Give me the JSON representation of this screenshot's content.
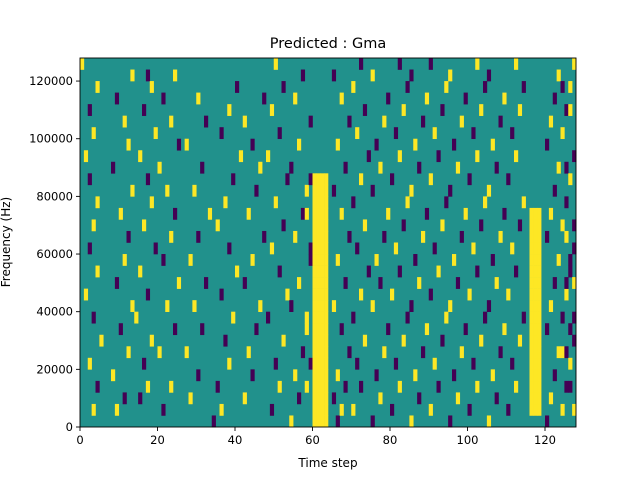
{
  "chart_data": {
    "type": "heatmap",
    "title": "Predicted : Gma",
    "xlabel": "Time step",
    "ylabel": "Frequency (Hz)",
    "xlim": [
      0,
      128
    ],
    "ylim": [
      0,
      128000
    ],
    "x_ticks": [
      0,
      20,
      40,
      60,
      80,
      100,
      120
    ],
    "y_ticks": [
      0,
      20000,
      40000,
      60000,
      80000,
      100000,
      120000
    ],
    "y_tick_labels": [
      "0",
      "20000",
      "40000",
      "60000",
      "80000",
      "100000",
      "120000"
    ],
    "grid": false,
    "colormap": [
      "#440154",
      "#21918c",
      "#fde725"
    ],
    "background_level": 1,
    "time_steps": 128,
    "freq_bins": 32,
    "bin_width_hz": 4000,
    "level_meaning": {
      "0": "low (dark purple)",
      "1": "mid (teal)",
      "2": "high (yellow)"
    },
    "yellow_bands": [
      {
        "t_start": 60,
        "t_end": 64,
        "f_start_hz": 0,
        "f_end_hz": 88000
      },
      {
        "t_start": 116,
        "t_end": 119,
        "f_start_hz": 4000,
        "f_end_hz": 76000
      }
    ],
    "sparse_cells": [
      [
        3,
        1,
        2
      ],
      [
        4,
        3,
        0
      ],
      [
        2,
        5,
        2
      ],
      [
        5,
        7,
        2
      ],
      [
        3,
        9,
        0
      ],
      [
        1,
        11,
        2
      ],
      [
        4,
        13,
        2
      ],
      [
        2,
        15,
        0
      ],
      [
        3,
        17,
        2
      ],
      [
        4,
        19,
        2
      ],
      [
        2,
        21,
        0
      ],
      [
        1,
        23,
        2
      ],
      [
        3,
        25,
        2
      ],
      [
        2,
        27,
        0
      ],
      [
        4,
        29,
        2
      ],
      [
        0,
        31,
        2
      ],
      [
        9,
        1,
        2
      ],
      [
        11,
        2,
        0
      ],
      [
        8,
        4,
        2
      ],
      [
        12,
        6,
        2
      ],
      [
        10,
        8,
        0
      ],
      [
        13,
        10,
        2
      ],
      [
        9,
        12,
        0
      ],
      [
        11,
        14,
        2
      ],
      [
        12,
        16,
        0
      ],
      [
        10,
        18,
        2
      ],
      [
        13,
        20,
        2
      ],
      [
        8,
        22,
        0
      ],
      [
        12,
        24,
        2
      ],
      [
        11,
        26,
        2
      ],
      [
        9,
        28,
        0
      ],
      [
        13,
        30,
        2
      ],
      [
        15,
        2,
        0
      ],
      [
        17,
        3,
        2
      ],
      [
        16,
        5,
        0
      ],
      [
        18,
        7,
        2
      ],
      [
        14,
        9,
        2
      ],
      [
        17,
        11,
        0
      ],
      [
        15,
        13,
        2
      ],
      [
        19,
        15,
        0
      ],
      [
        16,
        17,
        2
      ],
      [
        18,
        19,
        2
      ],
      [
        17,
        21,
        0
      ],
      [
        15,
        23,
        2
      ],
      [
        19,
        25,
        2
      ],
      [
        16,
        27,
        0
      ],
      [
        18,
        29,
        2
      ],
      [
        17,
        30,
        0
      ],
      [
        21,
        1,
        0
      ],
      [
        23,
        3,
        2
      ],
      [
        20,
        6,
        2
      ],
      [
        24,
        8,
        0
      ],
      [
        22,
        10,
        2
      ],
      [
        25,
        12,
        2
      ],
      [
        21,
        14,
        0
      ],
      [
        23,
        16,
        2
      ],
      [
        24,
        18,
        0
      ],
      [
        22,
        20,
        2
      ],
      [
        20,
        22,
        2
      ],
      [
        25,
        24,
        0
      ],
      [
        23,
        26,
        2
      ],
      [
        21,
        28,
        0
      ],
      [
        24,
        30,
        2
      ],
      [
        28,
        2,
        2
      ],
      [
        30,
        4,
        0
      ],
      [
        27,
        6,
        2
      ],
      [
        31,
        8,
        0
      ],
      [
        29,
        10,
        2
      ],
      [
        32,
        12,
        0
      ],
      [
        28,
        14,
        2
      ],
      [
        30,
        16,
        0
      ],
      [
        33,
        18,
        2
      ],
      [
        29,
        20,
        2
      ],
      [
        31,
        22,
        0
      ],
      [
        27,
        24,
        2
      ],
      [
        32,
        26,
        0
      ],
      [
        30,
        28,
        2
      ],
      [
        34,
        0,
        0
      ],
      [
        36,
        1,
        2
      ],
      [
        35,
        3,
        0
      ],
      [
        38,
        5,
        2
      ],
      [
        37,
        7,
        0
      ],
      [
        39,
        9,
        2
      ],
      [
        36,
        11,
        0
      ],
      [
        40,
        13,
        2
      ],
      [
        38,
        15,
        0
      ],
      [
        35,
        17,
        2
      ],
      [
        37,
        19,
        2
      ],
      [
        39,
        21,
        0
      ],
      [
        41,
        23,
        2
      ],
      [
        36,
        25,
        0
      ],
      [
        38,
        27,
        2
      ],
      [
        40,
        29,
        0
      ],
      [
        42,
        2,
        2
      ],
      [
        44,
        4,
        0
      ],
      [
        43,
        6,
        2
      ],
      [
        45,
        8,
        0
      ],
      [
        46,
        10,
        2
      ],
      [
        42,
        12,
        0
      ],
      [
        44,
        14,
        2
      ],
      [
        47,
        16,
        0
      ],
      [
        43,
        18,
        2
      ],
      [
        45,
        20,
        0
      ],
      [
        46,
        22,
        2
      ],
      [
        44,
        24,
        0
      ],
      [
        42,
        26,
        2
      ],
      [
        47,
        28,
        0
      ],
      [
        49,
        1,
        0
      ],
      [
        51,
        3,
        2
      ],
      [
        50,
        5,
        0
      ],
      [
        52,
        7,
        2
      ],
      [
        48,
        9,
        0
      ],
      [
        53,
        11,
        2
      ],
      [
        51,
        13,
        0
      ],
      [
        49,
        15,
        2
      ],
      [
        52,
        17,
        0
      ],
      [
        50,
        19,
        2
      ],
      [
        53,
        21,
        0
      ],
      [
        48,
        23,
        2
      ],
      [
        51,
        25,
        0
      ],
      [
        49,
        27,
        2
      ],
      [
        52,
        29,
        0
      ],
      [
        50,
        31,
        2
      ],
      [
        54,
        0,
        2
      ],
      [
        56,
        2,
        0
      ],
      [
        55,
        4,
        2
      ],
      [
        57,
        6,
        0
      ],
      [
        58,
        8,
        2
      ],
      [
        54,
        10,
        0
      ],
      [
        56,
        12,
        2
      ],
      [
        59,
        14,
        0
      ],
      [
        55,
        16,
        2
      ],
      [
        57,
        18,
        0
      ],
      [
        58,
        20,
        2
      ],
      [
        54,
        22,
        0
      ],
      [
        56,
        24,
        2
      ],
      [
        59,
        26,
        0
      ],
      [
        55,
        28,
        2
      ],
      [
        57,
        30,
        0
      ],
      [
        58,
        3,
        2
      ],
      [
        59,
        5,
        0
      ],
      [
        58,
        9,
        2
      ],
      [
        59,
        15,
        0
      ],
      [
        58,
        18,
        2
      ],
      [
        59,
        21,
        0
      ],
      [
        66,
        0,
        0
      ],
      [
        67,
        1,
        2
      ],
      [
        65,
        2,
        0
      ],
      [
        68,
        3,
        0
      ],
      [
        66,
        4,
        2
      ],
      [
        69,
        6,
        0
      ],
      [
        67,
        8,
        0
      ],
      [
        65,
        10,
        2
      ],
      [
        68,
        12,
        0
      ],
      [
        66,
        14,
        2
      ],
      [
        69,
        16,
        0
      ],
      [
        67,
        18,
        2
      ],
      [
        65,
        20,
        0
      ],
      [
        68,
        22,
        0
      ],
      [
        66,
        24,
        2
      ],
      [
        69,
        26,
        0
      ],
      [
        67,
        28,
        2
      ],
      [
        65,
        30,
        0
      ],
      [
        70,
        1,
        2
      ],
      [
        72,
        3,
        0
      ],
      [
        71,
        5,
        0
      ],
      [
        73,
        7,
        2
      ],
      [
        70,
        9,
        0
      ],
      [
        72,
        11,
        2
      ],
      [
        74,
        13,
        0
      ],
      [
        71,
        15,
        0
      ],
      [
        73,
        17,
        2
      ],
      [
        70,
        19,
        0
      ],
      [
        72,
        21,
        2
      ],
      [
        74,
        23,
        0
      ],
      [
        71,
        25,
        2
      ],
      [
        73,
        27,
        0
      ],
      [
        70,
        29,
        2
      ],
      [
        72,
        31,
        0
      ],
      [
        75,
        0,
        0
      ],
      [
        77,
        2,
        2
      ],
      [
        76,
        4,
        0
      ],
      [
        78,
        6,
        2
      ],
      [
        79,
        8,
        0
      ],
      [
        75,
        10,
        2
      ],
      [
        77,
        12,
        0
      ],
      [
        76,
        14,
        2
      ],
      [
        78,
        16,
        0
      ],
      [
        79,
        18,
        2
      ],
      [
        75,
        20,
        0
      ],
      [
        77,
        22,
        2
      ],
      [
        76,
        24,
        0
      ],
      [
        78,
        26,
        2
      ],
      [
        79,
        28,
        0
      ],
      [
        75,
        30,
        2
      ],
      [
        80,
        1,
        0
      ],
      [
        82,
        3,
        2
      ],
      [
        81,
        5,
        0
      ],
      [
        83,
        7,
        2
      ],
      [
        84,
        9,
        0
      ],
      [
        80,
        11,
        2
      ],
      [
        82,
        13,
        0
      ],
      [
        81,
        15,
        2
      ],
      [
        83,
        17,
        0
      ],
      [
        84,
        19,
        2
      ],
      [
        80,
        21,
        0
      ],
      [
        82,
        23,
        2
      ],
      [
        81,
        25,
        0
      ],
      [
        83,
        27,
        2
      ],
      [
        84,
        29,
        0
      ],
      [
        82,
        31,
        0
      ],
      [
        85,
        0,
        2
      ],
      [
        87,
        2,
        0
      ],
      [
        86,
        4,
        2
      ],
      [
        88,
        6,
        0
      ],
      [
        89,
        8,
        2
      ],
      [
        85,
        10,
        0
      ],
      [
        87,
        12,
        2
      ],
      [
        86,
        14,
        0
      ],
      [
        88,
        16,
        2
      ],
      [
        89,
        18,
        0
      ],
      [
        85,
        20,
        2
      ],
      [
        87,
        22,
        0
      ],
      [
        86,
        24,
        2
      ],
      [
        88,
        26,
        0
      ],
      [
        89,
        28,
        2
      ],
      [
        85,
        30,
        0
      ],
      [
        90,
        1,
        2
      ],
      [
        92,
        3,
        0
      ],
      [
        91,
        5,
        2
      ],
      [
        93,
        7,
        0
      ],
      [
        94,
        9,
        2
      ],
      [
        90,
        11,
        0
      ],
      [
        92,
        13,
        2
      ],
      [
        91,
        15,
        0
      ],
      [
        93,
        17,
        2
      ],
      [
        94,
        19,
        0
      ],
      [
        90,
        21,
        2
      ],
      [
        92,
        23,
        0
      ],
      [
        91,
        25,
        2
      ],
      [
        93,
        27,
        0
      ],
      [
        94,
        29,
        2
      ],
      [
        90,
        31,
        0
      ],
      [
        95,
        0,
        0
      ],
      [
        97,
        2,
        2
      ],
      [
        96,
        4,
        0
      ],
      [
        98,
        6,
        2
      ],
      [
        99,
        8,
        0
      ],
      [
        95,
        10,
        2
      ],
      [
        97,
        12,
        0
      ],
      [
        96,
        14,
        2
      ],
      [
        98,
        16,
        0
      ],
      [
        99,
        18,
        2
      ],
      [
        95,
        20,
        0
      ],
      [
        97,
        22,
        2
      ],
      [
        96,
        24,
        0
      ],
      [
        98,
        26,
        2
      ],
      [
        99,
        28,
        0
      ],
      [
        95,
        30,
        2
      ],
      [
        100,
        1,
        0
      ],
      [
        102,
        3,
        2
      ],
      [
        101,
        5,
        0
      ],
      [
        103,
        7,
        2
      ],
      [
        104,
        9,
        0
      ],
      [
        100,
        11,
        2
      ],
      [
        102,
        13,
        0
      ],
      [
        101,
        15,
        2
      ],
      [
        103,
        17,
        0
      ],
      [
        104,
        19,
        2
      ],
      [
        100,
        21,
        0
      ],
      [
        102,
        23,
        2
      ],
      [
        101,
        25,
        0
      ],
      [
        103,
        27,
        2
      ],
      [
        104,
        29,
        0
      ],
      [
        102,
        31,
        2
      ],
      [
        105,
        0,
        2
      ],
      [
        107,
        2,
        0
      ],
      [
        106,
        4,
        2
      ],
      [
        108,
        6,
        0
      ],
      [
        109,
        8,
        2
      ],
      [
        105,
        10,
        0
      ],
      [
        107,
        12,
        2
      ],
      [
        106,
        14,
        0
      ],
      [
        108,
        16,
        2
      ],
      [
        109,
        18,
        0
      ],
      [
        105,
        20,
        2
      ],
      [
        107,
        22,
        0
      ],
      [
        106,
        24,
        2
      ],
      [
        108,
        26,
        0
      ],
      [
        109,
        28,
        2
      ],
      [
        105,
        30,
        0
      ],
      [
        110,
        1,
        0
      ],
      [
        112,
        3,
        2
      ],
      [
        111,
        5,
        0
      ],
      [
        113,
        7,
        2
      ],
      [
        114,
        9,
        0
      ],
      [
        110,
        11,
        2
      ],
      [
        112,
        13,
        0
      ],
      [
        111,
        15,
        2
      ],
      [
        113,
        17,
        0
      ],
      [
        114,
        19,
        2
      ],
      [
        110,
        21,
        0
      ],
      [
        112,
        23,
        2
      ],
      [
        111,
        25,
        0
      ],
      [
        113,
        27,
        2
      ],
      [
        114,
        29,
        0
      ],
      [
        112,
        31,
        2
      ],
      [
        120,
        0,
        0
      ],
      [
        121,
        2,
        2
      ],
      [
        122,
        4,
        0
      ],
      [
        123,
        6,
        2
      ],
      [
        120,
        8,
        0
      ],
      [
        121,
        10,
        2
      ],
      [
        122,
        12,
        0
      ],
      [
        123,
        14,
        2
      ],
      [
        120,
        16,
        0
      ],
      [
        121,
        18,
        2
      ],
      [
        122,
        20,
        0
      ],
      [
        123,
        22,
        2
      ],
      [
        120,
        24,
        0
      ],
      [
        121,
        26,
        2
      ],
      [
        122,
        28,
        0
      ],
      [
        123,
        30,
        2
      ],
      [
        124,
        1,
        2
      ],
      [
        125,
        3,
        0
      ],
      [
        126,
        5,
        2
      ],
      [
        127,
        7,
        0
      ],
      [
        124,
        9,
        0
      ],
      [
        125,
        11,
        2
      ],
      [
        126,
        13,
        0
      ],
      [
        127,
        15,
        0
      ],
      [
        124,
        17,
        2
      ],
      [
        125,
        19,
        0
      ],
      [
        126,
        21,
        2
      ],
      [
        127,
        23,
        0
      ],
      [
        124,
        25,
        2
      ],
      [
        125,
        27,
        0
      ],
      [
        126,
        29,
        2
      ],
      [
        127,
        31,
        2
      ],
      [
        125,
        6,
        0
      ],
      [
        126,
        8,
        0
      ],
      [
        127,
        9,
        0
      ],
      [
        125,
        12,
        0
      ],
      [
        126,
        14,
        0
      ],
      [
        127,
        17,
        0
      ],
      [
        125,
        16,
        2
      ],
      [
        127,
        12,
        2
      ],
      [
        124,
        6,
        2
      ],
      [
        126,
        3,
        0
      ],
      [
        127,
        1,
        2
      ],
      [
        125,
        22,
        0
      ],
      [
        124,
        29,
        0
      ],
      [
        126,
        27,
        2
      ]
    ]
  }
}
